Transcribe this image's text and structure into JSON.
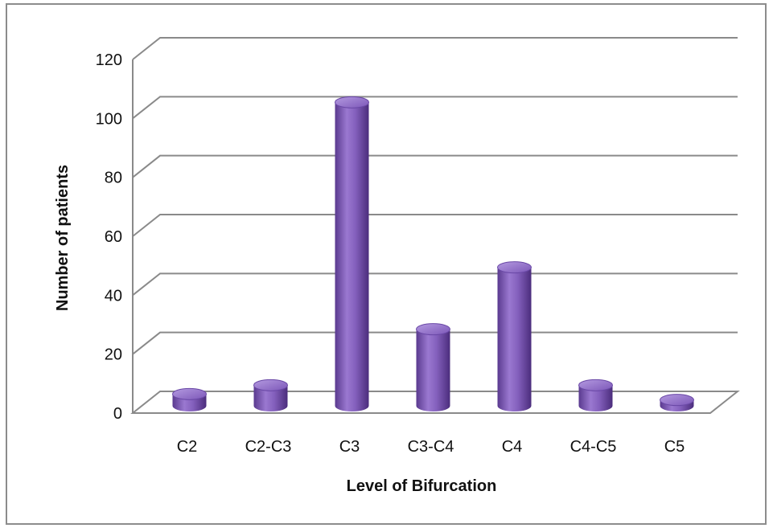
{
  "chart_data": {
    "type": "bar",
    "style": "3d-cylinder",
    "title": "",
    "xlabel": "Level of Bifurcation",
    "ylabel": "Number of patients",
    "categories": [
      "C2",
      "C2-C3",
      "C3",
      "C3-C4",
      "C4",
      "C4-C5",
      "C5"
    ],
    "values": [
      4,
      7,
      103,
      26,
      47,
      7,
      2
    ],
    "ylim": [
      0,
      120
    ],
    "yticks": [
      0,
      20,
      40,
      60,
      80,
      100,
      120
    ],
    "grid": true,
    "legend": "none",
    "colors": {
      "bar": "#8a63c2",
      "bar_dark": "#4a2c7a",
      "bar_light": "#b79be0",
      "grid": "#8a8a8a"
    }
  }
}
